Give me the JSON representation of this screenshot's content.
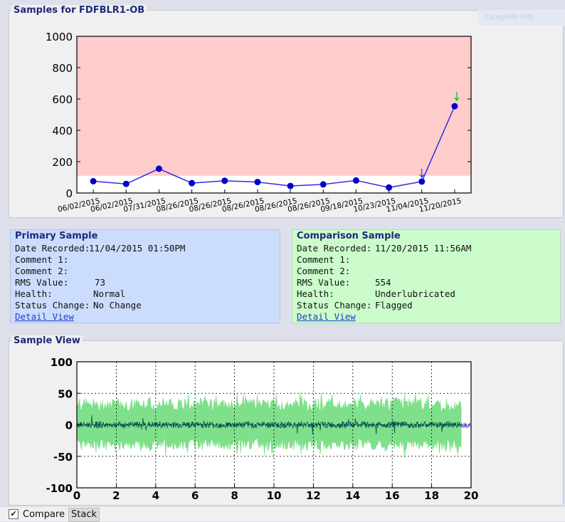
{
  "samples_panel": {
    "title": "Samples for FDFBLR1-OB"
  },
  "faded_tab": {
    "label": "Faceplate Info"
  },
  "chart_data": [
    {
      "type": "line",
      "x": [
        "06/02/2015",
        "06/02/2015",
        "07/31/2015",
        "08/26/2015",
        "08/26/2015",
        "08/26/2015",
        "08/26/2015",
        "08/26/2015",
        "09/18/2015",
        "10/23/2015",
        "11/04/2015",
        "11/20/2015"
      ],
      "values": [
        75,
        58,
        155,
        63,
        78,
        70,
        45,
        55,
        80,
        35,
        73,
        554
      ],
      "ylim": [
        0,
        1000
      ],
      "yticks": [
        "0",
        "200",
        "400",
        "600",
        "800",
        "1000"
      ],
      "alert_threshold": 110,
      "colors": {
        "alert_fill": "#ffcccc",
        "line": "#3030e0",
        "point": "#0000cc",
        "primary_marker": "#3030e0",
        "comparison_marker": "#22cc22"
      },
      "grid": false
    },
    {
      "type": "area",
      "xlim": [
        0,
        20
      ],
      "ylim": [
        -100,
        100
      ],
      "xticks": [
        "0",
        "2",
        "4",
        "6",
        "8",
        "10",
        "12",
        "14",
        "16",
        "18",
        "20"
      ],
      "yticks": [
        "100",
        "50",
        "0",
        "-50",
        "-100"
      ],
      "comparison_extent": 19.5,
      "primary_extent": 20,
      "colors": {
        "comparison_fill": "#7ee08a",
        "primary_line": "#0f5e5e",
        "tail": "#7777ee"
      },
      "grid": true
    }
  ],
  "primary": {
    "title": "Primary Sample",
    "date_label": "Date Recorded:",
    "date_value": "11/04/2015 01:50PM",
    "comment1_label": "Comment 1:",
    "comment2_label": "Comment 2:",
    "rms_label": "RMS Value:",
    "rms_value": "73",
    "health_label": "Health:",
    "health_value": "Normal",
    "status_label": "Status Change:",
    "status_value": "No Change",
    "link": "Detail View",
    "bg": "#ccdcfc"
  },
  "comparison": {
    "title": "Comparison Sample",
    "date_label": "Date Recorded:",
    "date_value": "11/20/2015 11:56AM",
    "comment1_label": "Comment 1:",
    "comment2_label": "Comment 2:",
    "rms_label": "RMS Value:",
    "rms_value": "554",
    "health_label": "Health:",
    "health_value": "Underlubricated",
    "status_label": "Status Change:",
    "status_value": "Flagged",
    "link": "Detail View",
    "bg": "#ccfccc"
  },
  "sample_view": {
    "title": "Sample View"
  },
  "controls": {
    "compare_label": "Compare",
    "compare_checked": "✔",
    "stack_label": "Stack"
  }
}
